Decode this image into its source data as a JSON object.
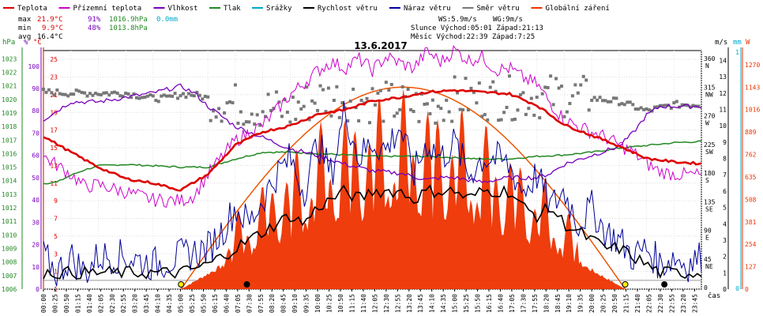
{
  "chart_data": {
    "type": "line",
    "title": "13.6.2017",
    "xlabel": "čas",
    "legend": [
      {
        "name": "Teplota",
        "color": "#dd0000"
      },
      {
        "name": "Přízemní teplota",
        "color": "#cc00cc"
      },
      {
        "name": "Vlhkost",
        "color": "#7700bb"
      },
      {
        "name": "Tlak",
        "color": "#228822"
      },
      {
        "name": "Srážky",
        "color": "#00aacc"
      },
      {
        "name": "Rychlost větru",
        "color": "#000000"
      },
      {
        "name": "Náraz větru",
        "color": "#000099"
      },
      {
        "name": "Směr větru",
        "color": "#777777"
      },
      {
        "name": "Globální záření",
        "color": "#ee3300"
      }
    ],
    "stats": {
      "max_label": "max",
      "max_temp": "21.9°C",
      "max_hum": "91%",
      "max_press": "1016.9hPa",
      "max_rain": "0.0mm",
      "min_label": "min",
      "min_temp": "9.9°C",
      "min_hum": "48%",
      "min_press": "1013.8hPa",
      "avg_label": "avg",
      "avg_temp": "16.4°C",
      "ws": "WS:5.9m/s",
      "wg": "WG:9m/s",
      "sun": "Slunce Východ:05:01  Západ:21:13",
      "moon": "Měsíc  Východ:22:39  Západ:7:25"
    },
    "axis_units": {
      "hpa": "hPa",
      "pct": "%",
      "degc": "°C",
      "ms": "m/s",
      "mm": "mm",
      "w": "W"
    },
    "axes": {
      "hpa": [
        "1023",
        "1022",
        "1021",
        "1020",
        "1019",
        "1018",
        "1017",
        "1016",
        "1015",
        "1014",
        "1013",
        "1012",
        "1011",
        "1010",
        "1009",
        "1008",
        "1007",
        "1006"
      ],
      "pct": [
        "100",
        "90",
        "80",
        "70",
        "60",
        "50",
        "40",
        "30",
        "20",
        "10",
        "0"
      ],
      "degc": [
        "25",
        "23",
        "21",
        "19",
        "17",
        "15",
        "13",
        "11",
        "9",
        "7",
        "5",
        "3",
        "1",
        "-1"
      ],
      "dir": [
        "360",
        "N",
        "315",
        "NW",
        "270",
        "W",
        "225",
        "SW",
        "180",
        "S",
        "135",
        "SE",
        "90",
        "E",
        "45",
        "NE",
        "0"
      ],
      "ms": [
        "14",
        "13",
        "12",
        "11",
        "10",
        "9",
        "8",
        "7",
        "6",
        "5",
        "4",
        "3",
        "2",
        "1",
        "0"
      ],
      "mm": [
        "1",
        "0"
      ],
      "w": [
        "1270",
        "1143",
        "1016",
        "889",
        "762",
        "635",
        "508",
        "381",
        "254",
        "127",
        "0"
      ]
    },
    "x_ticks": [
      "00:00",
      "00:25",
      "00:50",
      "01:15",
      "01:40",
      "02:05",
      "02:30",
      "02:55",
      "03:20",
      "03:45",
      "04:10",
      "04:35",
      "05:00",
      "05:25",
      "05:50",
      "06:15",
      "06:40",
      "07:05",
      "07:30",
      "07:55",
      "08:20",
      "08:45",
      "09:10",
      "09:35",
      "10:00",
      "10:25",
      "10:50",
      "11:15",
      "11:40",
      "12:05",
      "12:30",
      "12:55",
      "13:20",
      "13:45",
      "14:10",
      "14:35",
      "15:00",
      "15:25",
      "15:50",
      "16:15",
      "16:40",
      "17:05",
      "17:30",
      "17:55",
      "18:20",
      "18:45",
      "19:10",
      "19:35",
      "20:00",
      "20:25",
      "20:50",
      "21:15",
      "21:40",
      "22:05",
      "22:30",
      "22:55",
      "23:20",
      "23:45"
    ],
    "series": {
      "teplota": {
        "hours": [
          0,
          1,
          2,
          3,
          4,
          5,
          6,
          7,
          8,
          9,
          10,
          11,
          12,
          13,
          14,
          15,
          16,
          17,
          18,
          19,
          20,
          21,
          22,
          23,
          24
        ],
        "values": [
          16.3,
          14.5,
          12.8,
          11.5,
          11.0,
          10.2,
          12.0,
          15.3,
          16.8,
          17.5,
          18.8,
          19.3,
          20.3,
          20.7,
          21.3,
          21.5,
          21.3,
          21.1,
          19.8,
          17.6,
          16.4,
          15.2,
          13.8,
          13.4,
          13.2
        ]
      },
      "prizemni": {
        "hours": [
          0,
          0.5,
          1,
          1.5,
          2,
          3,
          4,
          5,
          5.5,
          6,
          7,
          8,
          8.5,
          9,
          9.5,
          10,
          10.5,
          11,
          11.5,
          12,
          12.5,
          13,
          13.5,
          14,
          14.5,
          15,
          15.5,
          16,
          16.5,
          17,
          17.5,
          18,
          18.5,
          19,
          19.5,
          20,
          20.5,
          21,
          21.5,
          22,
          22.5,
          23,
          24
        ],
        "values": [
          14.0,
          13.0,
          12.0,
          10.6,
          10.8,
          10.0,
          9.1,
          9.0,
          9.6,
          12.0,
          15.8,
          17.6,
          19.2,
          21.0,
          22.3,
          23.7,
          24.7,
          24.0,
          25.1,
          23.8,
          25.3,
          24.6,
          24.0,
          25.9,
          24.7,
          26.1,
          24.9,
          25.3,
          23.8,
          24.0,
          22.9,
          22.2,
          20.0,
          18.2,
          17.4,
          16.8,
          16.2,
          15.3,
          14.5,
          13.2,
          12.3,
          12.0,
          11.9
        ]
      },
      "vlhkost": {
        "hours": [
          0,
          0.5,
          1,
          1.5,
          2,
          3,
          4,
          5,
          5.5,
          6,
          7,
          8,
          9,
          10,
          10.5,
          11,
          12,
          13,
          14,
          14.5,
          15,
          16,
          17,
          18,
          18.5,
          19,
          20,
          21,
          21.5,
          22,
          22.5,
          23,
          24
        ],
        "values": [
          76,
          80,
          84,
          84,
          84,
          86,
          88,
          91,
          88,
          82,
          73,
          68,
          63,
          60,
          58,
          56,
          53,
          52,
          49,
          50,
          50,
          48,
          50,
          50,
          52,
          56,
          60,
          64,
          70,
          78,
          82,
          82,
          82
        ]
      },
      "tlak": {
        "hours": [
          0,
          0.5,
          1,
          1.5,
          2,
          3,
          4,
          5,
          6,
          7,
          8,
          9,
          10,
          11,
          12,
          13,
          14,
          15,
          16,
          17,
          18,
          19,
          20,
          21,
          22,
          23,
          24
        ],
        "values": [
          1013.8,
          1013.9,
          1014.4,
          1014.8,
          1015.1,
          1015.2,
          1015.1,
          1015.0,
          1015.0,
          1015.6,
          1016.1,
          1016.1,
          1016.0,
          1015.9,
          1015.8,
          1015.8,
          1015.8,
          1015.7,
          1015.6,
          1015.6,
          1015.8,
          1015.9,
          1016.1,
          1016.4,
          1016.6,
          1016.8,
          1016.9
        ]
      },
      "smer": {
        "hours": [
          0,
          1,
          2,
          3,
          4,
          4.5,
          5,
          5.5,
          6,
          7,
          8,
          9,
          10,
          11,
          12,
          13,
          14,
          15,
          16,
          17,
          18,
          19,
          20,
          21,
          22,
          23,
          24
        ],
        "values": [
          310,
          308,
          308,
          308,
          300,
          300,
          306,
          306,
          300,
          290,
          285,
          280,
          300,
          300,
          295,
          290,
          285,
          300,
          300,
          300,
          302,
          305,
          300,
          295,
          280,
          290,
          290
        ]
      },
      "rychlost": {
        "hours": [
          0,
          1,
          2,
          3,
          4,
          5,
          6,
          6.5,
          7,
          7.5,
          8,
          8.5,
          9,
          9.5,
          10,
          10.5,
          11,
          11.5,
          12,
          12.5,
          13,
          13.5,
          14,
          14.5,
          15,
          15.5,
          16,
          16.5,
          17,
          17.5,
          18,
          18.5,
          19,
          19.5,
          20,
          20.5,
          21,
          21.5,
          22,
          22.5,
          23,
          23.5,
          24
        ],
        "values": [
          1,
          1,
          1,
          1,
          1,
          1,
          1.5,
          2,
          2.5,
          3,
          3.5,
          4,
          4.5,
          4,
          5,
          5.5,
          6,
          5.5,
          6,
          6,
          6,
          5.5,
          6,
          6,
          6,
          5.5,
          6,
          6,
          6,
          5,
          4.5,
          5,
          4,
          3.5,
          3,
          2.5,
          2.5,
          2,
          1.5,
          1,
          1,
          1,
          1
        ]
      },
      "naraz": {
        "hours": [
          0,
          0.5,
          1,
          1.5,
          2,
          3,
          4,
          5,
          6,
          6.5,
          7,
          7.5,
          8,
          8.5,
          9,
          9.5,
          10,
          10.5,
          11,
          11.5,
          12,
          12.5,
          13,
          13.5,
          14,
          14.5,
          15,
          15.5,
          16,
          16.5,
          17,
          17.5,
          18,
          18.5,
          19,
          19.5,
          20,
          20.5,
          21,
          21.5,
          22,
          22.5,
          23,
          23.5,
          24
        ],
        "values": [
          2,
          1,
          2,
          1,
          2,
          2,
          1.5,
          2,
          2.5,
          3.5,
          5,
          4,
          5.5,
          7,
          8,
          6,
          9,
          7,
          11,
          8,
          9,
          8.5,
          10,
          7,
          9,
          8,
          9,
          7,
          8,
          8,
          7.5,
          6,
          7,
          5,
          6,
          4,
          5,
          3.5,
          3,
          2,
          2.5,
          1.5,
          2,
          1.5,
          2
        ]
      },
      "zareni": {
        "peak_w": 1143,
        "sunrise": 5.02,
        "sunset": 21.22
      }
    }
  }
}
